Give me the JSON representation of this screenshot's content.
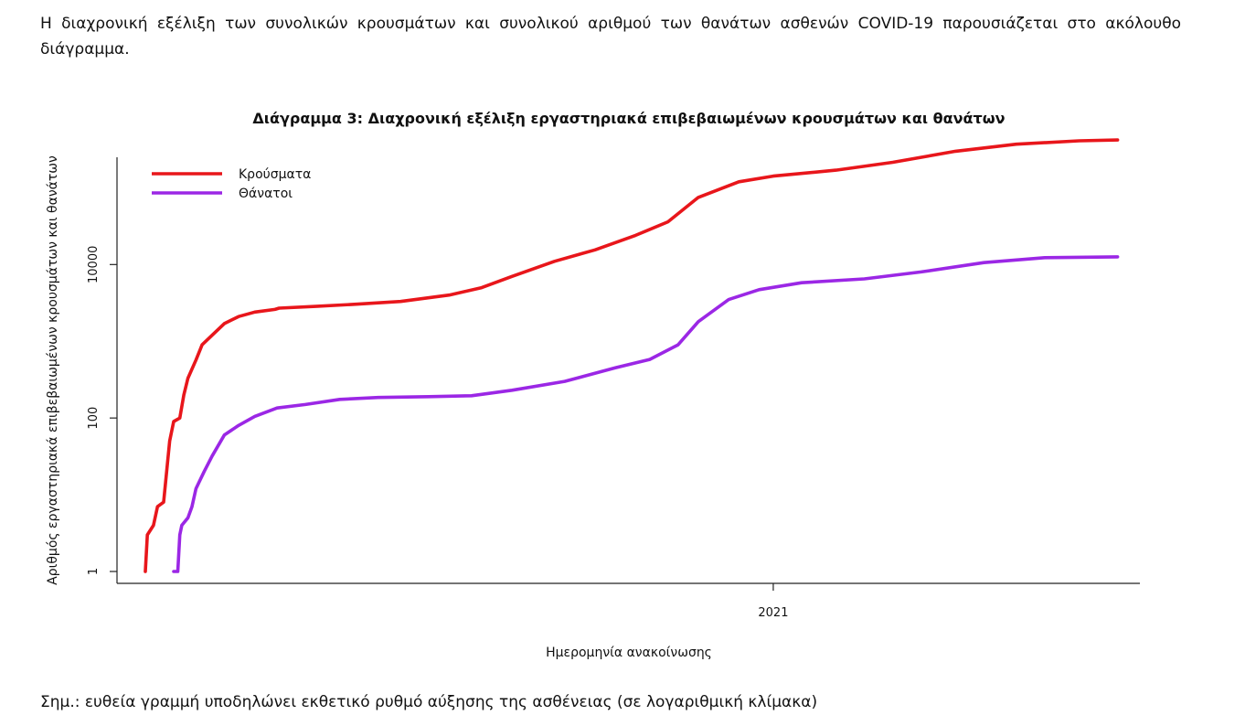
{
  "intro_text": "Η διαχρονική εξέλιξη των συνολικών κρουσμάτων και συνολικού αριθμού των θανάτων ασθενών COVID-19 παρουσιάζεται στο ακόλουθο διάγραμμα.",
  "note_text": "Σημ.: ευθεία γραμμή υποδηλώνει εκθετικό ρυθμό αύξησης της ασθένειας (σε λογαριθμική κλίμακα)",
  "chart_data": {
    "type": "line",
    "title": "Διάγραμμα 3: Διαχρονική εξέλιξη εργαστηριακά επιβεβαιωμένων κρουσμάτων και θανάτων",
    "xlabel": "Ημερομηνία ανακοίνωσης",
    "ylabel": "Αριθμός εργαστηριακά επιβεβαιωμένων κρουσμάτων και θανάτων",
    "y_scale": "log",
    "ylim": [
      0.7,
      250000
    ],
    "xlim": [
      "2020-02-12",
      "2021-07-01"
    ],
    "x_ticks": [
      {
        "date": "2021-01-01",
        "label": "2021"
      }
    ],
    "y_ticks": [
      {
        "value": 1,
        "label": "1"
      },
      {
        "value": 100,
        "label": "100"
      },
      {
        "value": 10000,
        "label": "10000"
      }
    ],
    "legend_position": "top-left",
    "series": [
      {
        "name": "Κρούσματα",
        "color": "#e8161b",
        "points": [
          [
            "2020-02-26",
            1
          ],
          [
            "2020-02-27",
            3
          ],
          [
            "2020-03-01",
            4
          ],
          [
            "2020-03-03",
            7
          ],
          [
            "2020-03-06",
            8
          ],
          [
            "2020-03-09",
            50
          ],
          [
            "2020-03-11",
            90
          ],
          [
            "2020-03-14",
            100
          ],
          [
            "2020-03-16",
            200
          ],
          [
            "2020-03-18",
            330
          ],
          [
            "2020-03-22",
            570
          ],
          [
            "2020-03-25",
            900
          ],
          [
            "2020-03-30",
            1200
          ],
          [
            "2020-04-05",
            1700
          ],
          [
            "2020-04-12",
            2100
          ],
          [
            "2020-04-20",
            2400
          ],
          [
            "2020-04-30",
            2600
          ],
          [
            "2020-05-02",
            2700
          ],
          [
            "2020-05-20",
            2850
          ],
          [
            "2020-06-10",
            3050
          ],
          [
            "2020-07-01",
            3300
          ],
          [
            "2020-07-25",
            4000
          ],
          [
            "2020-08-10",
            5000
          ],
          [
            "2020-08-25",
            7000
          ],
          [
            "2020-09-15",
            11000
          ],
          [
            "2020-10-05",
            15500
          ],
          [
            "2020-10-25",
            24000
          ],
          [
            "2020-11-10",
            36000
          ],
          [
            "2020-11-25",
            75000
          ],
          [
            "2020-12-15",
            120000
          ],
          [
            "2021-01-01",
            142000
          ],
          [
            "2021-02-01",
            170000
          ],
          [
            "2021-03-01",
            215000
          ],
          [
            "2021-04-01",
            300000
          ],
          [
            "2021-05-01",
            370000
          ],
          [
            "2021-06-01",
            410000
          ],
          [
            "2021-06-20",
            420000
          ]
        ]
      },
      {
        "name": "Θάνατοι",
        "color": "#9b27e5",
        "points": [
          [
            "2020-03-11",
            1
          ],
          [
            "2020-03-13",
            1
          ],
          [
            "2020-03-14",
            3
          ],
          [
            "2020-03-15",
            4
          ],
          [
            "2020-03-18",
            5
          ],
          [
            "2020-03-20",
            7
          ],
          [
            "2020-03-22",
            12
          ],
          [
            "2020-03-26",
            20
          ],
          [
            "2020-03-30",
            32
          ],
          [
            "2020-04-05",
            60
          ],
          [
            "2020-04-12",
            80
          ],
          [
            "2020-04-20",
            105
          ],
          [
            "2020-05-01",
            135
          ],
          [
            "2020-05-15",
            150
          ],
          [
            "2020-06-01",
            175
          ],
          [
            "2020-06-20",
            185
          ],
          [
            "2020-07-15",
            190
          ],
          [
            "2020-08-05",
            195
          ],
          [
            "2020-08-25",
            230
          ],
          [
            "2020-09-20",
            300
          ],
          [
            "2020-10-15",
            450
          ],
          [
            "2020-11-01",
            580
          ],
          [
            "2020-11-15",
            900
          ],
          [
            "2020-11-25",
            1800
          ],
          [
            "2020-12-10",
            3500
          ],
          [
            "2020-12-25",
            4700
          ],
          [
            "2021-01-15",
            5800
          ],
          [
            "2021-02-15",
            6500
          ],
          [
            "2021-03-15",
            8000
          ],
          [
            "2021-04-15",
            10600
          ],
          [
            "2021-05-15",
            12300
          ],
          [
            "2021-06-20",
            12600
          ]
        ]
      }
    ]
  }
}
